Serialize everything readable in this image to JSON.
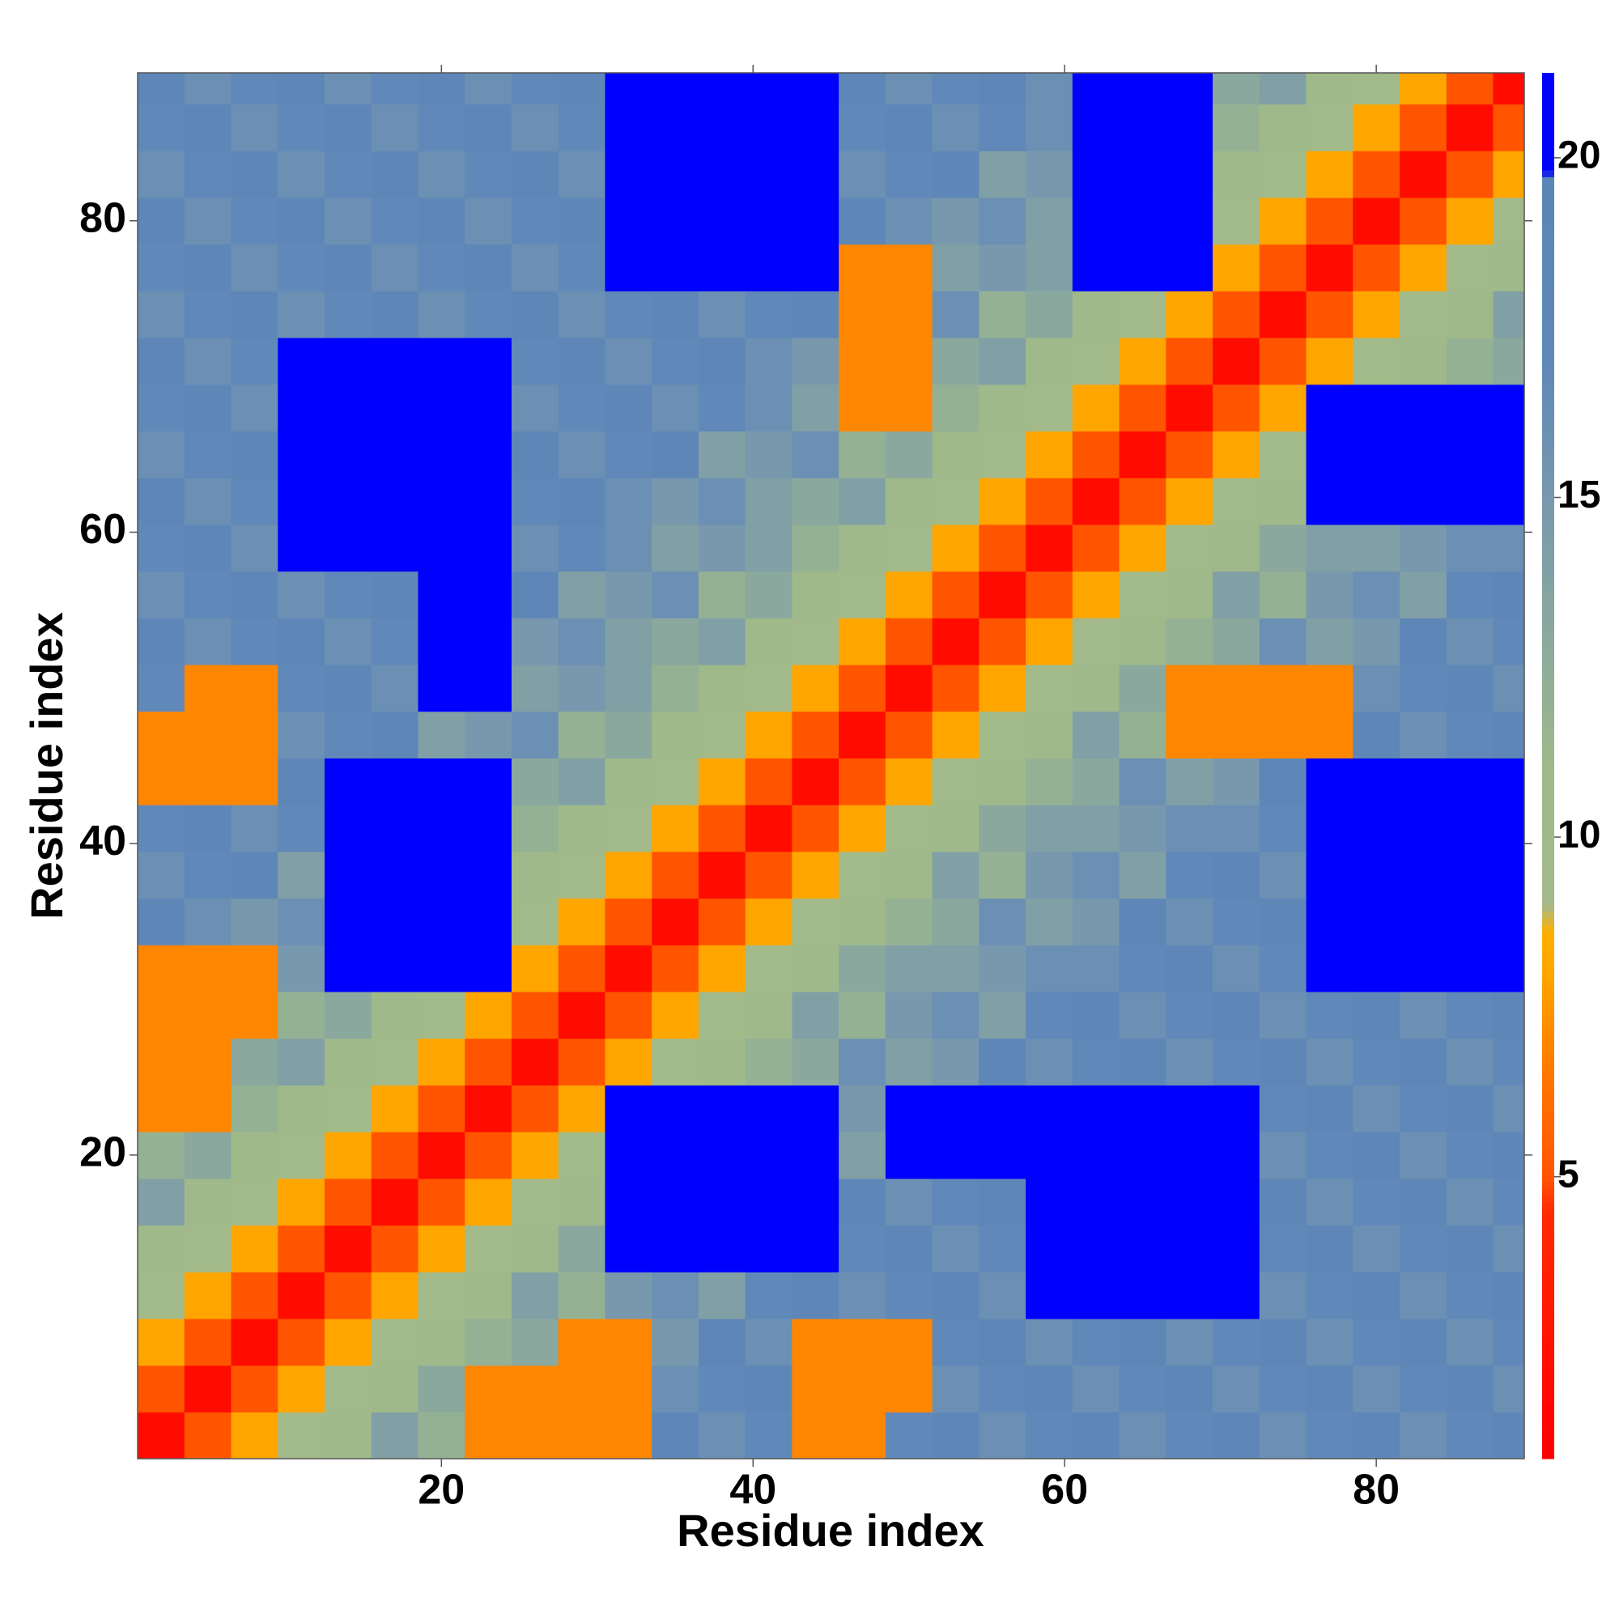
{
  "chart_data": {
    "type": "heatmap",
    "xlabel": "Residue index",
    "ylabel": "Residue index",
    "x": [
      2,
      5,
      8,
      11,
      14,
      17,
      20,
      23,
      26,
      29,
      32,
      35,
      38,
      41,
      44,
      47,
      50,
      53,
      56,
      59,
      62,
      65,
      68,
      71,
      74,
      77,
      80,
      83,
      86,
      89
    ],
    "y": [
      2,
      5,
      8,
      11,
      14,
      17,
      20,
      23,
      26,
      29,
      32,
      35,
      38,
      41,
      44,
      47,
      50,
      53,
      56,
      59,
      62,
      65,
      68,
      71,
      74,
      77,
      80,
      83,
      86,
      89
    ],
    "z": [
      [
        2,
        5,
        8,
        10,
        11,
        14,
        12,
        7,
        7,
        7,
        7,
        18,
        16,
        17,
        7,
        7,
        17,
        18,
        16,
        17,
        18,
        16,
        17,
        18,
        16,
        17,
        18,
        16,
        17,
        18
      ],
      [
        5,
        2,
        5,
        8,
        10,
        11,
        13,
        7,
        7,
        7,
        7,
        16,
        17,
        18,
        7,
        7,
        7,
        16,
        17,
        18,
        16,
        17,
        18,
        16,
        17,
        18,
        16,
        17,
        18,
        16
      ],
      [
        8,
        5,
        2,
        5,
        8,
        10,
        11,
        12,
        13,
        7,
        7,
        15,
        18,
        16,
        7,
        7,
        7,
        17,
        18,
        16,
        17,
        18,
        16,
        17,
        18,
        16,
        17,
        18,
        16,
        17
      ],
      [
        10,
        8,
        5,
        2,
        5,
        8,
        10,
        11,
        14,
        12,
        15,
        16,
        14,
        17,
        18,
        16,
        17,
        18,
        16,
        21,
        21,
        21,
        21,
        21,
        16,
        17,
        18,
        16,
        17,
        18
      ],
      [
        11,
        10,
        8,
        5,
        2,
        5,
        8,
        10,
        11,
        13,
        21,
        21,
        21,
        21,
        21,
        17,
        18,
        16,
        17,
        21,
        21,
        21,
        21,
        21,
        17,
        18,
        16,
        17,
        18,
        16
      ],
      [
        14,
        11,
        10,
        8,
        5,
        2,
        5,
        8,
        10,
        11,
        21,
        21,
        21,
        21,
        21,
        18,
        16,
        17,
        18,
        21,
        21,
        21,
        21,
        21,
        18,
        16,
        17,
        18,
        16,
        17
      ],
      [
        12,
        13,
        11,
        10,
        8,
        5,
        2,
        5,
        8,
        10,
        21,
        21,
        21,
        21,
        21,
        14,
        21,
        21,
        21,
        21,
        21,
        21,
        21,
        21,
        16,
        17,
        18,
        16,
        17,
        18
      ],
      [
        7,
        7,
        12,
        11,
        10,
        8,
        5,
        2,
        5,
        8,
        21,
        21,
        21,
        21,
        21,
        15,
        21,
        21,
        21,
        21,
        21,
        21,
        21,
        21,
        17,
        18,
        16,
        17,
        18,
        16
      ],
      [
        7,
        7,
        13,
        14,
        11,
        10,
        8,
        5,
        2,
        5,
        8,
        10,
        11,
        12,
        13,
        16,
        14,
        15,
        18,
        16,
        17,
        18,
        16,
        17,
        18,
        16,
        17,
        18,
        16,
        17
      ],
      [
        7,
        7,
        7,
        12,
        13,
        11,
        10,
        8,
        5,
        2,
        5,
        8,
        10,
        11,
        14,
        12,
        15,
        16,
        14,
        17,
        18,
        16,
        17,
        18,
        16,
        17,
        18,
        16,
        17,
        18
      ],
      [
        7,
        7,
        7,
        15,
        21,
        21,
        21,
        21,
        8,
        5,
        2,
        5,
        8,
        10,
        11,
        13,
        14,
        14,
        15,
        16,
        16,
        17,
        18,
        16,
        17,
        21,
        21,
        21,
        21,
        21
      ],
      [
        18,
        16,
        15,
        16,
        21,
        21,
        21,
        21,
        10,
        8,
        5,
        2,
        5,
        8,
        10,
        11,
        12,
        13,
        16,
        14,
        15,
        18,
        16,
        17,
        18,
        21,
        21,
        21,
        21,
        21
      ],
      [
        16,
        17,
        18,
        14,
        21,
        21,
        21,
        21,
        11,
        10,
        8,
        5,
        2,
        5,
        8,
        10,
        11,
        14,
        12,
        15,
        16,
        14,
        17,
        18,
        16,
        21,
        21,
        21,
        21,
        21
      ],
      [
        17,
        18,
        16,
        17,
        21,
        21,
        21,
        21,
        12,
        11,
        10,
        8,
        5,
        2,
        5,
        8,
        10,
        11,
        13,
        14,
        14,
        15,
        16,
        16,
        17,
        21,
        21,
        21,
        21,
        21
      ],
      [
        7,
        7,
        7,
        18,
        21,
        21,
        21,
        21,
        13,
        14,
        11,
        10,
        8,
        5,
        2,
        5,
        8,
        10,
        11,
        12,
        13,
        16,
        14,
        15,
        18,
        21,
        21,
        21,
        21,
        21
      ],
      [
        7,
        7,
        7,
        16,
        17,
        18,
        14,
        15,
        16,
        12,
        13,
        11,
        10,
        8,
        5,
        2,
        5,
        8,
        10,
        11,
        14,
        12,
        7,
        7,
        7,
        7,
        18,
        16,
        17,
        18
      ],
      [
        17,
        7,
        7,
        17,
        18,
        16,
        21,
        21,
        14,
        15,
        14,
        12,
        11,
        10,
        8,
        5,
        2,
        5,
        8,
        10,
        11,
        13,
        7,
        7,
        7,
        7,
        16,
        17,
        18,
        16
      ],
      [
        18,
        16,
        17,
        18,
        16,
        17,
        21,
        21,
        15,
        16,
        14,
        13,
        14,
        11,
        10,
        8,
        5,
        2,
        5,
        8,
        10,
        11,
        12,
        13,
        16,
        14,
        15,
        18,
        16,
        17
      ],
      [
        16,
        17,
        18,
        16,
        17,
        18,
        21,
        21,
        18,
        14,
        15,
        16,
        12,
        13,
        11,
        10,
        8,
        5,
        2,
        5,
        8,
        10,
        11,
        14,
        12,
        15,
        16,
        14,
        17,
        18
      ],
      [
        17,
        18,
        16,
        21,
        21,
        21,
        21,
        21,
        16,
        17,
        16,
        14,
        15,
        14,
        12,
        11,
        10,
        8,
        5,
        2,
        5,
        8,
        10,
        11,
        13,
        14,
        14,
        15,
        16,
        16
      ],
      [
        18,
        16,
        17,
        21,
        21,
        21,
        21,
        21,
        17,
        18,
        16,
        15,
        16,
        14,
        13,
        14,
        11,
        10,
        8,
        5,
        2,
        5,
        8,
        10,
        11,
        21,
        21,
        21,
        21,
        21
      ],
      [
        16,
        17,
        18,
        21,
        21,
        21,
        21,
        21,
        18,
        16,
        17,
        18,
        14,
        15,
        16,
        12,
        13,
        11,
        10,
        8,
        5,
        2,
        5,
        8,
        10,
        21,
        21,
        21,
        21,
        21
      ],
      [
        17,
        18,
        16,
        21,
        21,
        21,
        21,
        21,
        16,
        17,
        18,
        16,
        17,
        16,
        14,
        7,
        7,
        12,
        11,
        10,
        8,
        5,
        2,
        5,
        8,
        21,
        21,
        21,
        21,
        21
      ],
      [
        18,
        16,
        17,
        21,
        21,
        21,
        21,
        21,
        17,
        18,
        16,
        17,
        18,
        16,
        15,
        7,
        7,
        13,
        14,
        11,
        10,
        8,
        5,
        2,
        5,
        8,
        10,
        11,
        12,
        13
      ],
      [
        16,
        17,
        18,
        16,
        17,
        18,
        16,
        17,
        18,
        16,
        17,
        18,
        16,
        17,
        18,
        7,
        7,
        16,
        12,
        13,
        11,
        10,
        8,
        5,
        2,
        5,
        8,
        10,
        11,
        14
      ],
      [
        17,
        18,
        16,
        17,
        18,
        16,
        17,
        18,
        16,
        17,
        21,
        21,
        21,
        21,
        21,
        7,
        7,
        14,
        15,
        14,
        21,
        21,
        21,
        8,
        5,
        2,
        5,
        8,
        10,
        11
      ],
      [
        18,
        16,
        17,
        18,
        16,
        17,
        18,
        16,
        17,
        18,
        21,
        21,
        21,
        21,
        21,
        18,
        16,
        15,
        16,
        14,
        21,
        21,
        21,
        10,
        8,
        5,
        2,
        5,
        8,
        10
      ],
      [
        16,
        17,
        18,
        16,
        17,
        18,
        16,
        17,
        18,
        16,
        21,
        21,
        21,
        21,
        21,
        16,
        17,
        18,
        14,
        15,
        21,
        21,
        21,
        11,
        10,
        8,
        5,
        2,
        5,
        8
      ],
      [
        17,
        18,
        16,
        17,
        18,
        16,
        17,
        18,
        16,
        17,
        21,
        21,
        21,
        21,
        21,
        17,
        18,
        16,
        17,
        16,
        21,
        21,
        21,
        12,
        11,
        10,
        8,
        5,
        2,
        5
      ],
      [
        18,
        16,
        17,
        18,
        16,
        17,
        18,
        16,
        17,
        18,
        21,
        21,
        21,
        21,
        21,
        18,
        16,
        17,
        18,
        16,
        21,
        21,
        21,
        13,
        14,
        11,
        10,
        8,
        5,
        2
      ]
    ],
    "xlim": [
      0.5,
      89.5
    ],
    "ylim": [
      0.5,
      89.5
    ],
    "xticks": [
      20,
      40,
      60,
      80
    ],
    "yticks": [
      20,
      40,
      60,
      80
    ],
    "colorscale": [
      [
        1,
        "#ff0000"
      ],
      [
        4.5,
        "#ff2a00"
      ],
      [
        5,
        "#ff5500"
      ],
      [
        6.5,
        "#ff7700"
      ],
      [
        8,
        "#ffa500"
      ],
      [
        8.6,
        "#ffb000"
      ],
      [
        9,
        "#a4b98a"
      ],
      [
        11,
        "#9fb98a"
      ],
      [
        13,
        "#8aa89e"
      ],
      [
        15,
        "#7898ad"
      ],
      [
        17,
        "#6088b8"
      ],
      [
        19.7,
        "#5a86b8"
      ],
      [
        19.8,
        "#0000ff"
      ],
      [
        21.5,
        "#0000ff"
      ]
    ],
    "colorbar_lim": [
      0.85,
      21.25
    ],
    "colorbar_ticks": [
      5,
      10,
      15,
      20
    ]
  }
}
